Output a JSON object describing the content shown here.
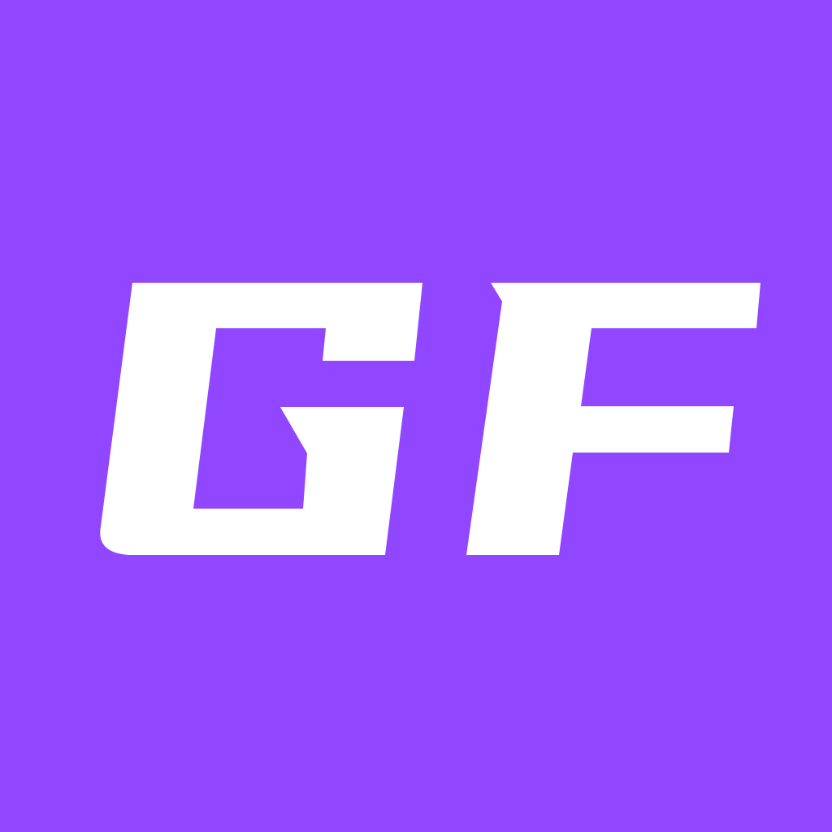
{
  "logo": {
    "text": "GF",
    "background_color": "#9146FF",
    "foreground_color": "#FFFFFF"
  }
}
